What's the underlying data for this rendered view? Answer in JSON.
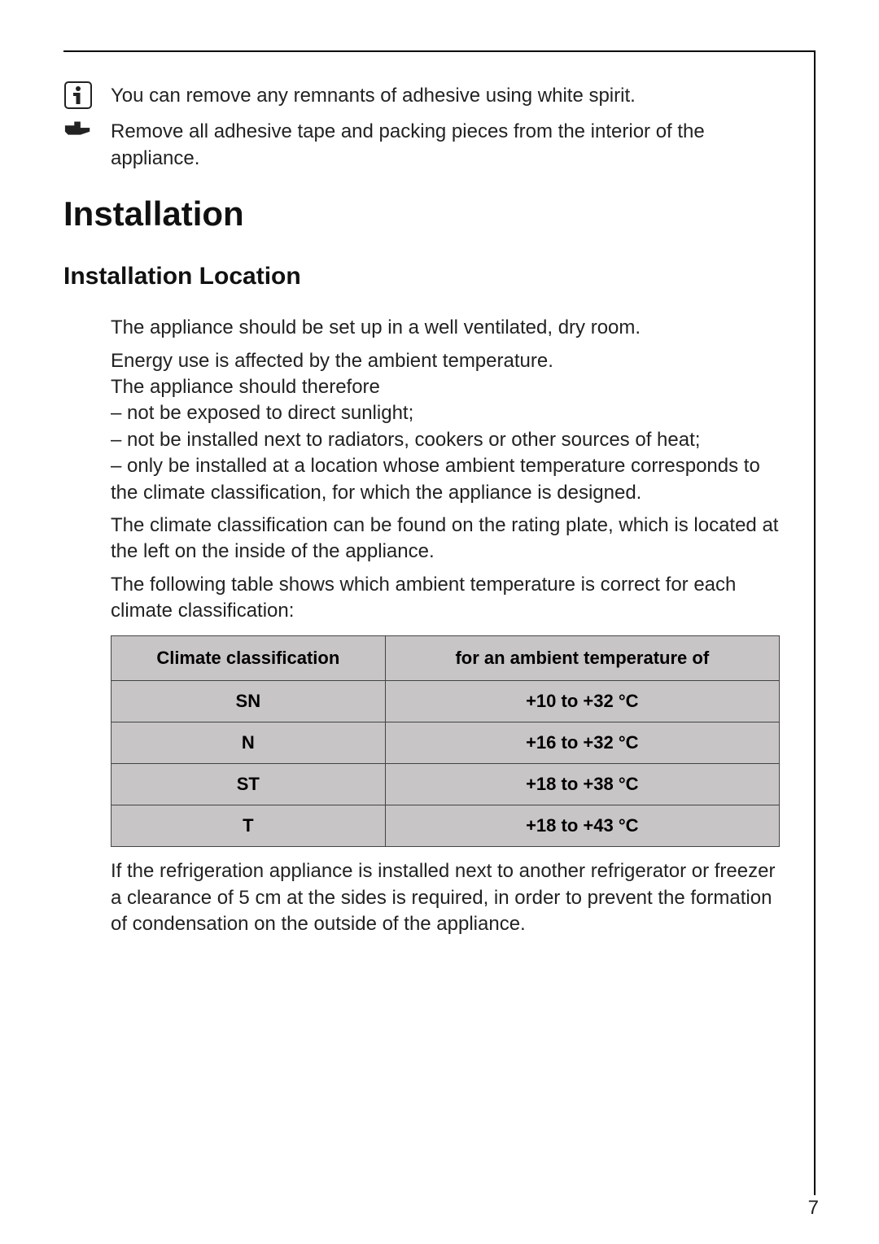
{
  "tips": {
    "info_line": "You can remove any remnants of adhesive using white spirit.",
    "hand_line": "Remove all adhesive tape and packing pieces from the interior of the appliance."
  },
  "section_title": "Installation",
  "subsection_title": "Installation Location",
  "paragraphs": {
    "p1": "The appliance should be set up in a well ventilated, dry room.",
    "p2a": "Energy use is affected by the ambient temperature.",
    "p2b": "The appliance should therefore",
    "b1": "– not be exposed to direct sunlight;",
    "b2": "– not be installed next to radiators, cookers or other sources of heat;",
    "b3": "– only be installed at a location whose ambient temperature corresponds to the climate classification, for which the appliance is designed.",
    "p3": "The climate classification can be found on the rating plate, which is located at the left on the inside of the appliance.",
    "p4": "The following table shows which ambient temperature is correct for each climate classification:",
    "p5": "If the refrigeration appliance is installed next to another refrigerator or freezer a clearance of 5 cm at the sides is required, in order to prevent the formation of condensation on the outside of the appliance."
  },
  "table": {
    "type": "table",
    "columns": [
      "Climate classification",
      "for an ambient temperature of"
    ],
    "rows": [
      [
        "SN",
        "+10 to +32 °C"
      ],
      [
        "N",
        "+16 to +32 °C"
      ],
      [
        "ST",
        "+18 to +38 °C"
      ],
      [
        "T",
        "+18 to +43 °C"
      ]
    ],
    "header_bg": "#c7c5c6",
    "cell_bg": "#c7c5c6",
    "border_color": "#444444",
    "font_size": 22,
    "font_weight": "700",
    "col_widths_pct": [
      41,
      59
    ]
  },
  "page_number": "7",
  "colors": {
    "text": "#222222",
    "rule": "#000000",
    "background": "#ffffff"
  },
  "typography": {
    "body_fontsize": 24,
    "h1_fontsize": 42,
    "h2_fontsize": 30
  }
}
